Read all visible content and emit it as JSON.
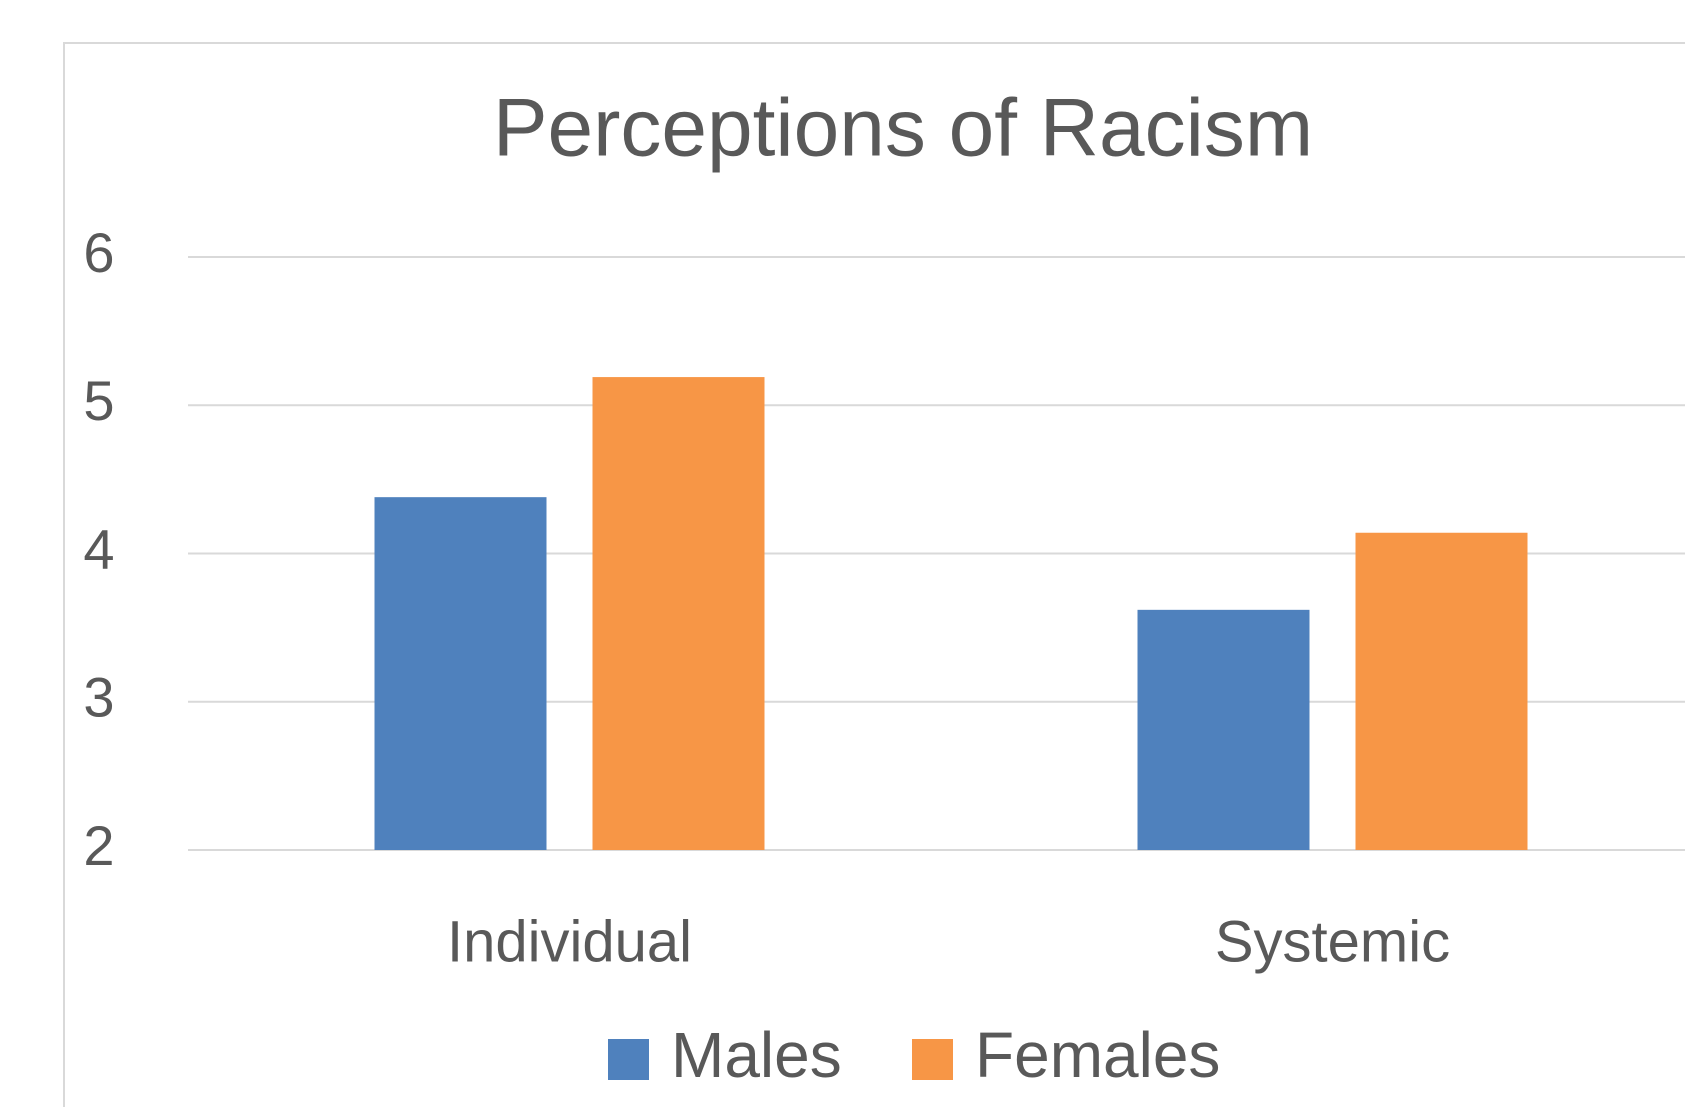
{
  "chart_data": {
    "type": "bar",
    "title": "Perceptions of Racism",
    "categories": [
      "Individual",
      "Systemic"
    ],
    "series": [
      {
        "name": "Males",
        "color": "#4f81bd",
        "values": [
          4.38,
          3.62
        ]
      },
      {
        "name": "Females",
        "color": "#f79646",
        "values": [
          5.19,
          4.14
        ]
      }
    ],
    "ylim": [
      2,
      6
    ],
    "yticks": [
      2,
      3,
      4,
      5,
      6
    ],
    "grid": true,
    "legend": "bottom"
  }
}
